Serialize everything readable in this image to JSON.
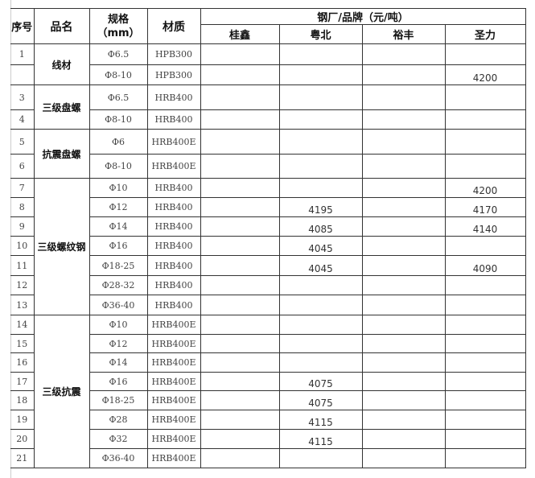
{
  "header": {
    "seq": "序号",
    "name": "品名",
    "spec": "规格",
    "spec_unit": "（mm）",
    "material": "材质",
    "group": "钢厂/品牌（元/吨）",
    "brands": [
      "桂鑫",
      "粤北",
      "裕丰",
      "圣力"
    ]
  },
  "groups": [
    {
      "name": "线材",
      "rows": [
        0,
        1
      ]
    },
    {
      "name": "三级盘螺",
      "rows": [
        2,
        3
      ]
    },
    {
      "name": "抗震盘螺",
      "rows": [
        4,
        5
      ]
    },
    {
      "name": "三级螺纹钢",
      "rows": [
        6,
        7,
        8,
        9,
        10,
        11,
        12
      ]
    },
    {
      "name": "三级抗震",
      "rows": [
        13,
        14,
        15,
        16,
        17,
        18,
        19,
        20
      ]
    }
  ],
  "rows": [
    {
      "seq": "1",
      "spec": "Φ6.5",
      "material": "HPB300",
      "prices": [
        "",
        "",
        "",
        ""
      ]
    },
    {
      "seq": "",
      "spec": "Φ8-10",
      "material": "HPB300",
      "prices": [
        "",
        "",
        "",
        "4200"
      ]
    },
    {
      "seq": "3",
      "spec": "Φ6.5",
      "material": "HRB400",
      "prices": [
        "",
        "",
        "",
        ""
      ]
    },
    {
      "seq": "4",
      "spec": "Φ8-10",
      "material": "HRB400",
      "prices": [
        "",
        "",
        "",
        ""
      ]
    },
    {
      "seq": "5",
      "spec": "Φ6",
      "material": "HRB400E",
      "prices": [
        "",
        "",
        "",
        ""
      ]
    },
    {
      "seq": "6",
      "spec": "Φ8-10",
      "material": "HRB400E",
      "prices": [
        "",
        "",
        "",
        ""
      ]
    },
    {
      "seq": "7",
      "spec": "Φ10",
      "material": "HRB400",
      "prices": [
        "",
        "",
        "",
        "4200"
      ]
    },
    {
      "seq": "8",
      "spec": "Φ12",
      "material": "HRB400",
      "prices": [
        "",
        "4195",
        "",
        "4170"
      ]
    },
    {
      "seq": "9",
      "spec": "Φ14",
      "material": "HRB400",
      "prices": [
        "",
        "4085",
        "",
        "4140"
      ]
    },
    {
      "seq": "10",
      "spec": "Φ16",
      "material": "HRB400",
      "prices": [
        "",
        "4045",
        "",
        ""
      ]
    },
    {
      "seq": "11",
      "spec": "Φ18-25",
      "material": "HRB400",
      "prices": [
        "",
        "4045",
        "",
        "4090"
      ]
    },
    {
      "seq": "12",
      "spec": "Φ28-32",
      "material": "HRB400",
      "prices": [
        "",
        "",
        "",
        ""
      ]
    },
    {
      "seq": "13",
      "spec": "Φ36-40",
      "material": "HRB400",
      "prices": [
        "",
        "",
        "",
        ""
      ]
    },
    {
      "seq": "14",
      "spec": "Φ10",
      "material": "HRB400E",
      "prices": [
        "",
        "",
        "",
        ""
      ]
    },
    {
      "seq": "15",
      "spec": "Φ12",
      "material": "HRB400E",
      "prices": [
        "",
        "",
        "",
        ""
      ]
    },
    {
      "seq": "16",
      "spec": "Φ14",
      "material": "HRB400E",
      "prices": [
        "",
        "",
        "",
        ""
      ]
    },
    {
      "seq": "17",
      "spec": "Φ16",
      "material": "HRB400E",
      "prices": [
        "",
        "4075",
        "",
        ""
      ]
    },
    {
      "seq": "18",
      "spec": "Φ18-25",
      "material": "HRB400E",
      "prices": [
        "",
        "4075",
        "",
        ""
      ]
    },
    {
      "seq": "19",
      "spec": "Φ28",
      "material": "HRB400E",
      "prices": [
        "",
        "4115",
        "",
        ""
      ]
    },
    {
      "seq": "20",
      "spec": "Φ32",
      "material": "HRB400E",
      "prices": [
        "",
        "4115",
        "",
        ""
      ]
    },
    {
      "seq": "21",
      "spec": "Φ36-40",
      "material": "HRB400E",
      "prices": [
        "",
        "",
        "",
        ""
      ]
    }
  ]
}
